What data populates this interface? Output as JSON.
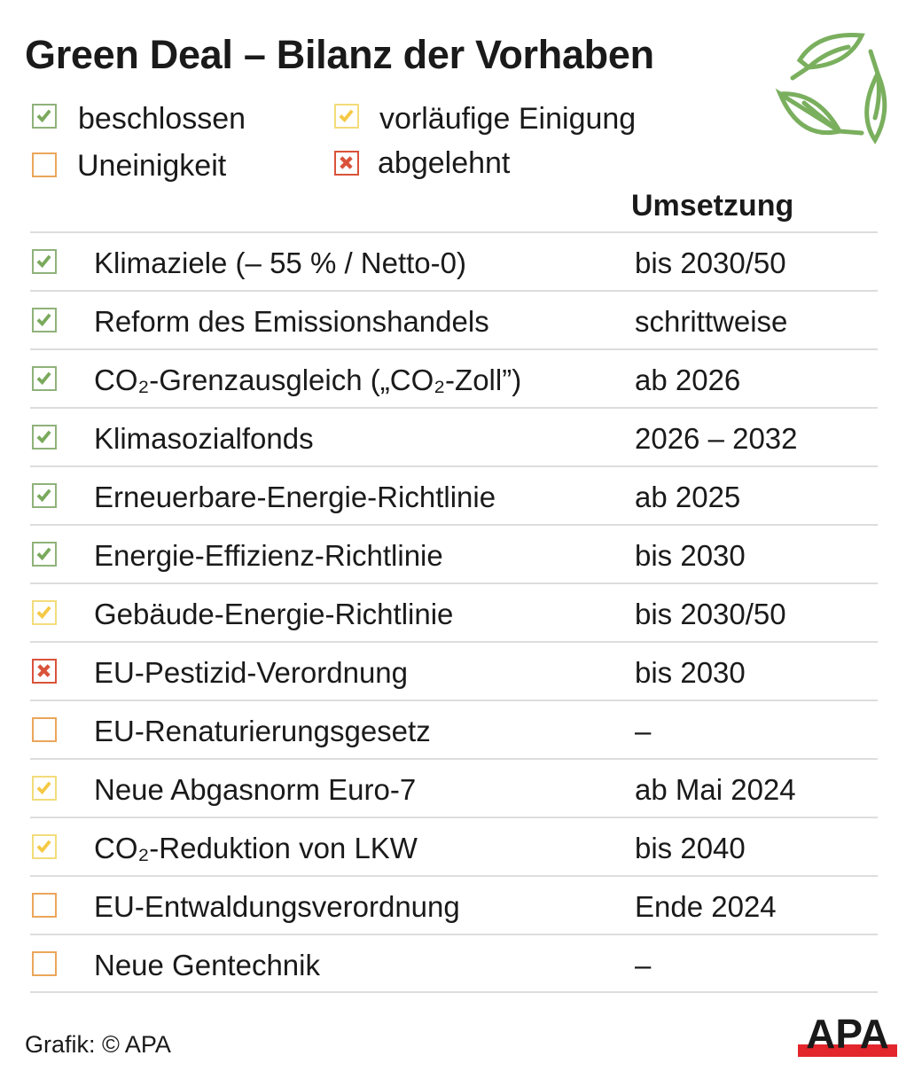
{
  "title": "Green Deal – Bilanz der Vorhaben",
  "colors": {
    "beschlossen": "#7aa95c",
    "vorlaeufig": "#f5c945",
    "uneinigkeit": "#eba65a",
    "abgelehnt": "#d9533a",
    "apa_red": "#e3262c"
  },
  "legend": [
    {
      "status": "beschlossen",
      "label": "beschlossen"
    },
    {
      "status": "vorlaeufig",
      "label": "vorläufige Einigung"
    },
    {
      "status": "uneinigkeit",
      "label": "Uneinigkeit"
    },
    {
      "status": "abgelehnt",
      "label": "abgelehnt"
    }
  ],
  "column_header": "Umsetzung",
  "rows": [
    {
      "status": "beschlossen",
      "name": "Klimaziele (– 55 % / Netto-0)",
      "when": "bis 2030/50"
    },
    {
      "status": "beschlossen",
      "name": "Reform des Emissionshandels",
      "when": "schrittweise"
    },
    {
      "status": "beschlossen",
      "name": "CO₂-Grenzausgleich („CO₂-Zoll”)",
      "when": "ab 2026"
    },
    {
      "status": "beschlossen",
      "name": "Klimasozialfonds",
      "when": "2026 – 2032"
    },
    {
      "status": "beschlossen",
      "name": "Erneuerbare-Energie-Richtlinie",
      "when": "ab 2025"
    },
    {
      "status": "beschlossen",
      "name": "Energie-Effizienz-Richtlinie",
      "when": "bis 2030"
    },
    {
      "status": "vorlaeufig",
      "name": "Gebäude-Energie-Richtlinie",
      "when": "bis 2030/50"
    },
    {
      "status": "abgelehnt",
      "name": "EU-Pestizid-Verordnung",
      "when": "bis 2030"
    },
    {
      "status": "uneinigkeit",
      "name": "EU-Renaturierungsgesetz",
      "when": "–"
    },
    {
      "status": "vorlaeufig",
      "name": "Neue Abgasnorm Euro-7",
      "when": "ab Mai 2024"
    },
    {
      "status": "vorlaeufig",
      "name": "CO₂-Reduktion von LKW",
      "when": "bis 2040"
    },
    {
      "status": "uneinigkeit",
      "name": "EU-Entwaldungsverordnung",
      "when": "Ende 2024"
    },
    {
      "status": "uneinigkeit",
      "name": "Neue Gentechnik",
      "when": "–"
    }
  ],
  "credit": "Grafik: © APA",
  "logo_text": "APA",
  "icons": {
    "header": "leaves-icon",
    "beschlossen": "check-icon",
    "vorlaeufig": "check-icon",
    "abgelehnt": "cross-icon",
    "uneinigkeit": "empty-box-icon"
  }
}
